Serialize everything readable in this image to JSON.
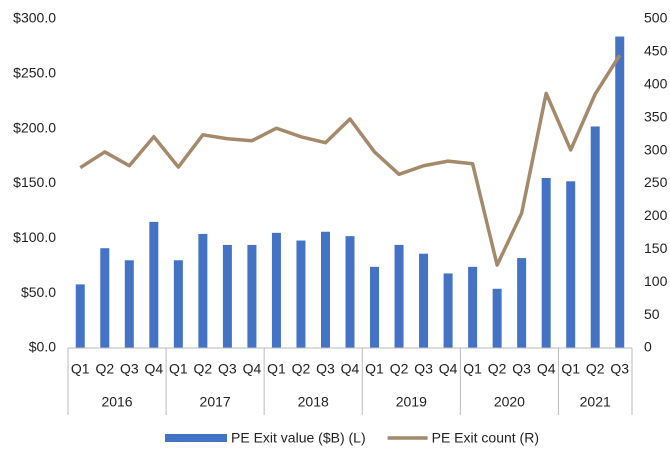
{
  "chart_data": {
    "type": "bar_line",
    "category_groups": [
      {
        "name": "2016",
        "categories": [
          "Q1",
          "Q2",
          "Q3",
          "Q4"
        ]
      },
      {
        "name": "2017",
        "categories": [
          "Q1",
          "Q2",
          "Q3",
          "Q4"
        ]
      },
      {
        "name": "2018",
        "categories": [
          "Q1",
          "Q2",
          "Q3",
          "Q4"
        ]
      },
      {
        "name": "2019",
        "categories": [
          "Q1",
          "Q2",
          "Q3",
          "Q4"
        ]
      },
      {
        "name": "2020",
        "categories": [
          "Q1",
          "Q2",
          "Q3",
          "Q4"
        ]
      },
      {
        "name": "2021",
        "categories": [
          "Q1",
          "Q2",
          "Q3"
        ]
      }
    ],
    "series": [
      {
        "name": "PE Exit value ($B) (L)",
        "type": "bar",
        "axis": "y",
        "color": "#4472c4",
        "values": [
          58,
          91,
          80,
          115,
          80,
          104,
          94,
          94,
          105,
          98,
          106,
          102,
          74,
          94,
          86,
          68,
          74,
          54,
          82,
          155,
          152,
          202,
          284
        ]
      },
      {
        "name": "PE Exit count (R)",
        "type": "line",
        "axis": "y2",
        "color": "#a4896a",
        "values": [
          274,
          298,
          277,
          321,
          275,
          324,
          318,
          315,
          334,
          321,
          312,
          348,
          298,
          264,
          277,
          284,
          280,
          126,
          205,
          387,
          301,
          386,
          445
        ]
      }
    ],
    "ylim": [
      0,
      300
    ],
    "yticks": [
      {
        "value": 0,
        "label": "$0.0"
      },
      {
        "value": 50,
        "label": "$50.0"
      },
      {
        "value": 100,
        "label": "$100.0"
      },
      {
        "value": 150,
        "label": "$150.0"
      },
      {
        "value": 200,
        "label": "$200.0"
      },
      {
        "value": 250,
        "label": "$250.0"
      },
      {
        "value": 300,
        "label": "$300.0"
      }
    ],
    "y2lim": [
      0,
      500
    ],
    "y2ticks": [
      0,
      50,
      100,
      150,
      200,
      250,
      300,
      350,
      400,
      450,
      500
    ],
    "grid": false
  }
}
